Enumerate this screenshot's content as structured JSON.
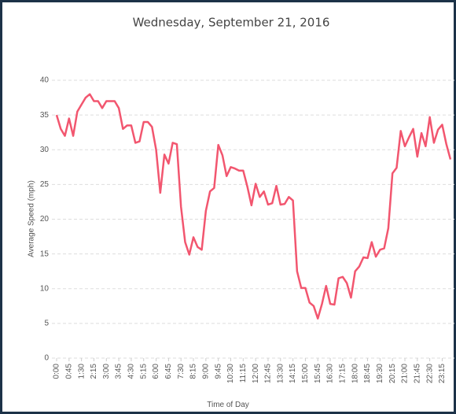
{
  "chart_data": {
    "type": "line",
    "title": "Wednesday, September 21, 2016",
    "x_label": "Time of Day",
    "y_label": "Average Speed (mph)",
    "categories": [
      "0:00",
      null,
      null,
      "0:45",
      null,
      null,
      "1:30",
      null,
      null,
      "2:15",
      null,
      null,
      "3:00",
      null,
      null,
      "3:45",
      null,
      null,
      "4:30",
      null,
      null,
      "5:15",
      null,
      null,
      "6:00",
      null,
      null,
      "6:45",
      null,
      null,
      "7:30",
      null,
      null,
      "8:15",
      null,
      null,
      "9:00",
      null,
      null,
      "9:45",
      null,
      null,
      "10:30",
      null,
      null,
      "11:15",
      null,
      null,
      "12:00",
      null,
      null,
      "12:45",
      null,
      null,
      "13:30",
      null,
      null,
      "14:15",
      null,
      null,
      "15:00",
      null,
      null,
      "15:45",
      null,
      null,
      "16:30",
      null,
      null,
      "17:15",
      null,
      null,
      "18:00",
      null,
      null,
      "18:45",
      null,
      null,
      "19:30",
      null,
      null,
      "20:15",
      null,
      null,
      "21:00",
      null,
      null,
      "21:45",
      null,
      null,
      "22:30",
      null,
      null,
      "23:15",
      null,
      null
    ],
    "values": [
      35,
      33,
      32,
      34.5,
      32,
      35.5,
      36.5,
      37.5,
      38,
      37,
      37,
      36,
      37,
      37,
      37,
      36,
      33,
      33.5,
      33.5,
      31,
      31.2,
      34,
      34,
      33.3,
      30,
      23.8,
      29.3,
      28,
      31,
      30.8,
      21.8,
      16.7,
      14.9,
      17.4,
      16,
      15.6,
      21.2,
      24,
      24.5,
      30.7,
      29.2,
      26.2,
      27.5,
      27.3,
      27,
      27,
      24.7,
      22,
      25.1,
      23.2,
      24,
      22.1,
      22.3,
      24.8,
      22.1,
      22.2,
      23.2,
      22.7,
      12.5,
      10.1,
      10.1,
      8,
      7.5,
      5.7,
      7.8,
      10.4,
      7.8,
      7.7,
      11.5,
      11.7,
      10.8,
      8.7,
      12.5,
      13.2,
      14.5,
      14.4,
      16.7,
      14.6,
      15.6,
      15.8,
      18.7,
      26.6,
      27.4,
      32.7,
      30.5,
      31.8,
      33,
      29,
      32.4,
      30.5,
      34.7,
      31,
      32.9,
      33.6,
      30.8,
      28.6
    ],
    "color": "#f2566f",
    "ylim": [
      0,
      40
    ],
    "yticks": [
      0,
      5,
      10,
      15,
      20,
      25,
      30,
      35,
      40
    ],
    "grid": true
  }
}
